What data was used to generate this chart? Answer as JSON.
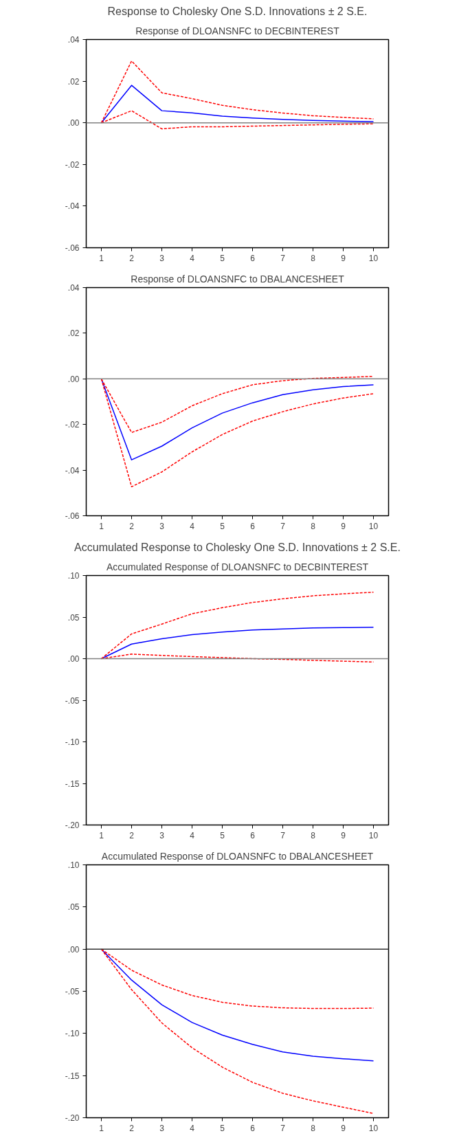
{
  "chart_data": [
    {
      "type": "line",
      "title": "Response to Cholesky One S.D. Innovations ± 2 S.E.",
      "subtitle": "Response of DLOANSNFC to DECBINTEREST",
      "categories": [
        "1",
        "2",
        "3",
        "4",
        "5",
        "6",
        "7",
        "8",
        "9",
        "10"
      ],
      "ylim": [
        -0.06,
        0.04
      ],
      "yticks": [
        {
          "value": -0.06,
          "label": "-.06"
        },
        {
          "value": -0.04,
          "label": "-.04"
        },
        {
          "value": -0.02,
          "label": "-.02"
        },
        {
          "value": 0,
          "label": ".00"
        },
        {
          "value": 0.02,
          "label": ".02"
        },
        {
          "value": 0.04,
          "label": ".04"
        }
      ],
      "grid": false,
      "ref_lines": [
        {
          "axis": "y",
          "value": 0,
          "color": "#808080"
        }
      ],
      "series": [
        {
          "color": "#0000ff",
          "line_style": "solid",
          "values": [
            0,
            0.018,
            0.0058,
            0.0048,
            0.0032,
            0.0023,
            0.0016,
            0.0011,
            0.0008,
            0.0006
          ]
        },
        {
          "color": "#ff0000",
          "line_style": "dashed",
          "values": [
            0,
            0.0297,
            0.0144,
            0.0116,
            0.0084,
            0.0063,
            0.0047,
            0.0034,
            0.0026,
            0.0019
          ]
        },
        {
          "color": "#ff0000",
          "line_style": "dashed",
          "values": [
            0,
            0.0058,
            -0.0029,
            -0.0019,
            -0.0019,
            -0.0016,
            -0.0013,
            -0.001,
            -0.0007,
            -0.0005
          ]
        }
      ]
    },
    {
      "type": "line",
      "title": "Response of DLOANSNFC to DBALANCESHEET",
      "categories": [
        "1",
        "2",
        "3",
        "4",
        "5",
        "6",
        "7",
        "8",
        "9",
        "10"
      ],
      "ylim": [
        -0.06,
        0.04
      ],
      "yticks": [
        {
          "value": -0.06,
          "label": "-.06"
        },
        {
          "value": -0.04,
          "label": "-.04"
        },
        {
          "value": -0.02,
          "label": "-.02"
        },
        {
          "value": 0,
          "label": ".00"
        },
        {
          "value": 0.02,
          "label": ".02"
        },
        {
          "value": 0.04,
          "label": ".04"
        }
      ],
      "grid": false,
      "ref_lines": [
        {
          "axis": "y",
          "value": 0,
          "color": "#808080"
        }
      ],
      "series": [
        {
          "color": "#0000ff",
          "line_style": "solid",
          "values": [
            0,
            -0.0355,
            -0.0295,
            -0.0215,
            -0.015,
            -0.0105,
            -0.0069,
            -0.0048,
            -0.0034,
            -0.0026
          ]
        },
        {
          "color": "#ff0000",
          "line_style": "dashed",
          "values": [
            0,
            -0.0235,
            -0.019,
            -0.0118,
            -0.0065,
            -0.0026,
            -0.0008,
            0.0002,
            0.0006,
            0.0011
          ]
        },
        {
          "color": "#ff0000",
          "line_style": "dashed",
          "values": [
            0,
            -0.0473,
            -0.0408,
            -0.032,
            -0.0244,
            -0.0185,
            -0.0144,
            -0.011,
            -0.0084,
            -0.0065
          ]
        }
      ]
    },
    {
      "type": "line",
      "title": "Accumulated Response to Cholesky One S.D. Innovations ± 2 S.E.",
      "subtitle": "Accumulated Response of DLOANSNFC to DECBINTEREST",
      "categories": [
        "1",
        "2",
        "3",
        "4",
        "5",
        "6",
        "7",
        "8",
        "9",
        "10"
      ],
      "ylim": [
        -0.2,
        0.1
      ],
      "yticks": [
        {
          "value": -0.2,
          "label": "-.20"
        },
        {
          "value": -0.15,
          "label": "-.15"
        },
        {
          "value": -0.1,
          "label": "-.10"
        },
        {
          "value": -0.05,
          "label": "-.05"
        },
        {
          "value": 0,
          "label": ".00"
        },
        {
          "value": 0.05,
          "label": ".05"
        },
        {
          "value": 0.1,
          "label": ".10"
        }
      ],
      "grid": false,
      "ref_lines": [
        {
          "axis": "y",
          "value": 0,
          "color": "#808080"
        }
      ],
      "series": [
        {
          "color": "#0000ff",
          "line_style": "solid",
          "values": [
            0,
            0.0176,
            0.024,
            0.029,
            0.032,
            0.0345,
            0.0357,
            0.037,
            0.0374,
            0.0378
          ]
        },
        {
          "color": "#ff0000",
          "line_style": "dashed",
          "values": [
            0,
            0.0298,
            0.0416,
            0.054,
            0.0613,
            0.0676,
            0.072,
            0.0756,
            0.078,
            0.08
          ]
        },
        {
          "color": "#ff0000",
          "line_style": "dashed",
          "values": [
            0,
            0.0055,
            0.004,
            0.0025,
            0.0013,
            0,
            -0.0008,
            -0.002,
            -0.003,
            -0.004
          ]
        }
      ]
    },
    {
      "type": "line",
      "title": "Accumulated Response of DLOANSNFC to DBALANCESHEET",
      "categories": [
        "1",
        "2",
        "3",
        "4",
        "5",
        "6",
        "7",
        "8",
        "9",
        "10"
      ],
      "ylim": [
        -0.2,
        0.1
      ],
      "yticks": [
        {
          "value": -0.2,
          "label": "-.20"
        },
        {
          "value": -0.15,
          "label": "-.15"
        },
        {
          "value": -0.1,
          "label": "-.10"
        },
        {
          "value": -0.05,
          "label": "-.05"
        },
        {
          "value": 0,
          "label": ".00"
        },
        {
          "value": 0.05,
          "label": ".05"
        },
        {
          "value": 0.1,
          "label": ".10"
        }
      ],
      "grid": false,
      "ref_lines": [
        {
          "axis": "y",
          "value": 0,
          "color": "#303030"
        }
      ],
      "series": [
        {
          "color": "#0000ff",
          "line_style": "solid",
          "values": [
            0,
            -0.0367,
            -0.066,
            -0.087,
            -0.102,
            -0.113,
            -0.122,
            -0.127,
            -0.13,
            -0.1325
          ]
        },
        {
          "color": "#ff0000",
          "line_style": "dashed",
          "values": [
            0,
            -0.025,
            -0.0425,
            -0.055,
            -0.063,
            -0.0675,
            -0.0696,
            -0.0704,
            -0.0704,
            -0.07
          ]
        },
        {
          "color": "#ff0000",
          "line_style": "dashed",
          "values": [
            0,
            -0.048,
            -0.0875,
            -0.117,
            -0.14,
            -0.158,
            -0.171,
            -0.18,
            -0.1875,
            -0.195
          ]
        }
      ]
    }
  ]
}
